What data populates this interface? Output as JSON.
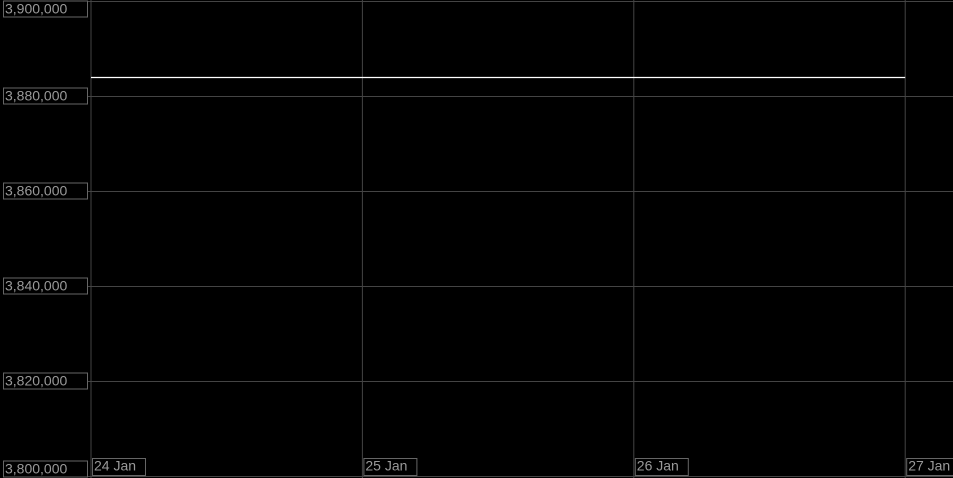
{
  "chart_data": {
    "type": "line",
    "x": [
      "24 Jan",
      "25 Jan",
      "26 Jan",
      "27 Jan"
    ],
    "series": [
      {
        "color": "#ffffff",
        "values": [
          3884000,
          3884000,
          3884000,
          3884000
        ]
      }
    ],
    "ylim": [
      3800000,
      3900000
    ],
    "yticks": [
      {
        "value": 3800000,
        "label": "3,800,000"
      },
      {
        "value": 3820000,
        "label": "3,820,000"
      },
      {
        "value": 3840000,
        "label": "3,840,000"
      },
      {
        "value": 3860000,
        "label": "3,860,000"
      },
      {
        "value": 3880000,
        "label": "3,880,000"
      },
      {
        "value": 3900000,
        "label": "3,900,000"
      }
    ],
    "grid": true
  }
}
